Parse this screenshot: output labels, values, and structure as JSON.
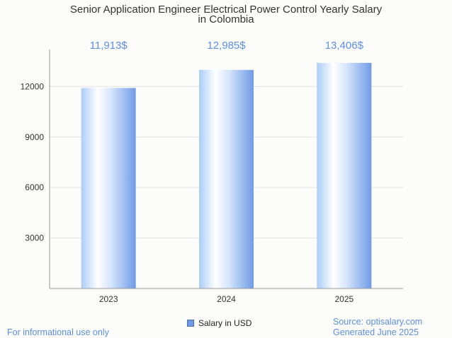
{
  "chart_data": {
    "type": "bar",
    "title_lines": [
      "Senior Application Engineer Electrical Power Control Yearly Salary",
      "in Colombia"
    ],
    "categories": [
      "2023",
      "2024",
      "2025"
    ],
    "series": [
      {
        "name": "Salary in USD",
        "values": [
          11913,
          12985,
          13406
        ]
      }
    ],
    "data_labels": [
      "11,913$",
      "12,985$",
      "13,406$"
    ],
    "y_ticks": [
      3000,
      6000,
      9000,
      12000
    ],
    "ylim": [
      0,
      14200
    ],
    "grid": true,
    "legend_position": "bottom-center",
    "bar_color": "#6f9be6"
  },
  "footer": {
    "left_note": "For informational use only",
    "source": "Source: optisalary.com",
    "generated": "Generated June 2025"
  }
}
